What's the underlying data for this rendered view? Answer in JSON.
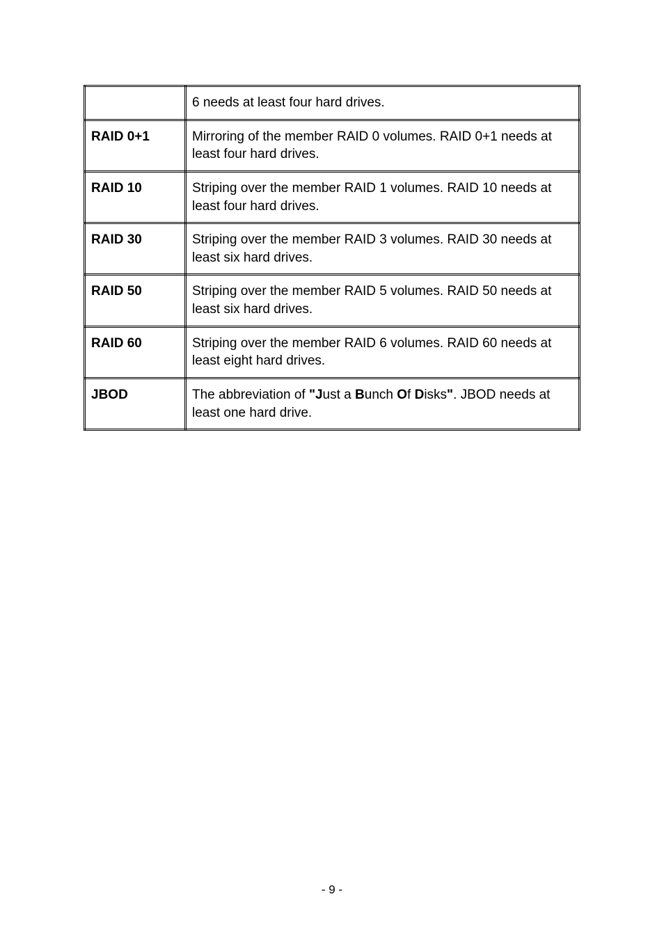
{
  "table": {
    "col_widths": [
      "145px",
      "auto"
    ],
    "rows": [
      {
        "label": "",
        "desc_parts": [
          {
            "t": "6 needs at least four hard drives.",
            "b": false
          }
        ]
      },
      {
        "label": "RAID 0+1",
        "desc_parts": [
          {
            "t": "Mirroring of the member RAID 0 volumes. RAID 0+1 needs at least four hard drives.",
            "b": false
          }
        ]
      },
      {
        "label": "RAID 10",
        "desc_parts": [
          {
            "t": "Striping over the member RAID 1 volumes. RAID 10 needs at least four hard drives.",
            "b": false
          }
        ]
      },
      {
        "label": "RAID 30",
        "desc_parts": [
          {
            "t": "Striping over the member RAID 3 volumes. RAID 30 needs at least six hard drives.",
            "b": false
          }
        ]
      },
      {
        "label": "RAID 50",
        "desc_parts": [
          {
            "t": "Striping over the member RAID 5 volumes. RAID 50 needs at least six hard drives.",
            "b": false
          }
        ]
      },
      {
        "label": "RAID 60",
        "desc_parts": [
          {
            "t": "Striping over the member RAID 6 volumes. RAID 60 needs at least eight hard drives.",
            "b": false
          }
        ]
      },
      {
        "label": "JBOD",
        "desc_parts": [
          {
            "t": "The abbreviation of ",
            "b": false
          },
          {
            "t": "\"J",
            "b": true
          },
          {
            "t": "ust a ",
            "b": false
          },
          {
            "t": "B",
            "b": true
          },
          {
            "t": "unch ",
            "b": false
          },
          {
            "t": "O",
            "b": true
          },
          {
            "t": "f ",
            "b": false
          },
          {
            "t": "D",
            "b": true
          },
          {
            "t": "isks",
            "b": false
          },
          {
            "t": "\"",
            "b": true
          },
          {
            "t": ". JBOD needs at least one hard drive.",
            "b": false
          }
        ]
      }
    ]
  },
  "footer": "- 9 -",
  "style": {
    "page_bg": "#ffffff",
    "text_color": "#000000",
    "border_color": "#000000",
    "font_size_body": 19,
    "font_size_footer": 17
  }
}
